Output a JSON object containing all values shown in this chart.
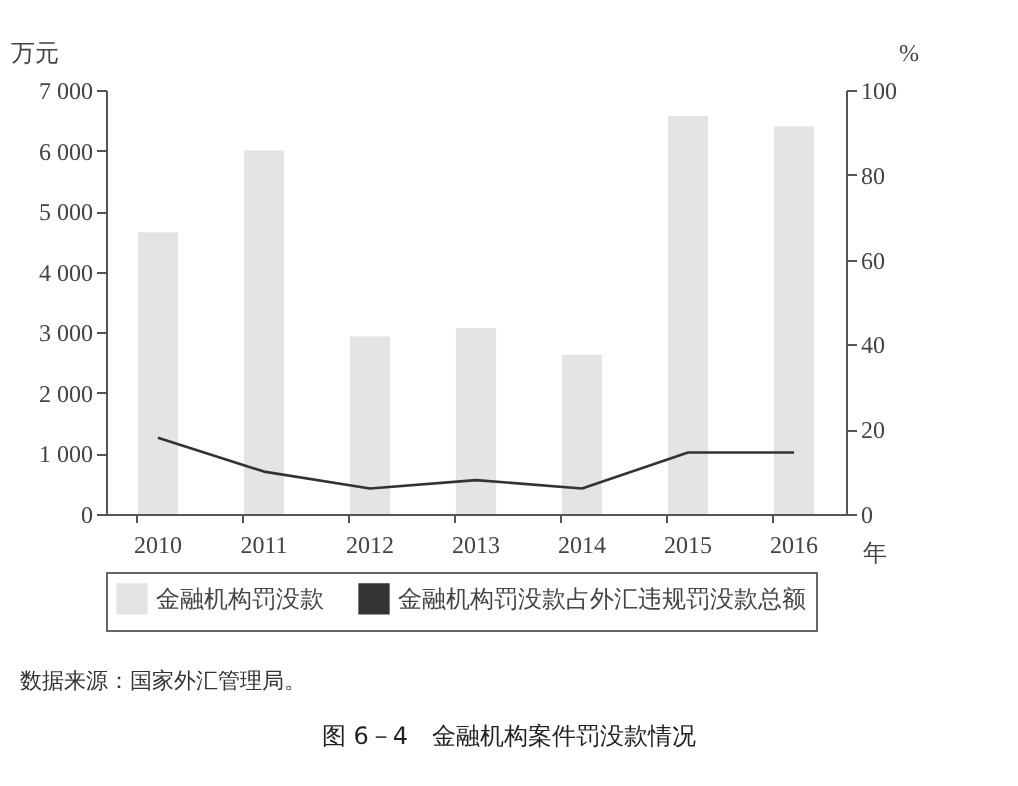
{
  "chart_data": {
    "type": "bar",
    "title": "图 6－4　金融机构案件罚没款情况",
    "categories": [
      "2010",
      "2011",
      "2012",
      "2013",
      "2014",
      "2015",
      "2016"
    ],
    "xlabel": "年",
    "ylabel": "万元",
    "y2label": "%",
    "series": [
      {
        "name": "金融机构罚没款",
        "color": "#e4e4e4",
        "values": [
          4650,
          6000,
          2930,
          3070,
          2630,
          6570,
          6400
        ]
      },
      {
        "name": "金融机构罚没款占外汇违规罚没款总额",
        "type": "line",
        "axis": "y2",
        "color": "#333333",
        "values": [
          18,
          10,
          6,
          8,
          6,
          14.5,
          14.5
        ]
      }
    ],
    "ylim": [
      0,
      7000
    ],
    "yticks": [
      0,
      {
        "value": 1000,
        "label": "1 000"
      },
      {
        "value": 2000,
        "label": "2 000"
      },
      {
        "value": 3000,
        "label": "3 000"
      },
      {
        "value": 4000,
        "label": "4 000"
      },
      {
        "value": 5000,
        "label": "5 000"
      },
      {
        "value": 6000,
        "label": "6 000"
      },
      {
        "value": 7000,
        "label": "7 000"
      }
    ],
    "y2lim": [
      0,
      100
    ],
    "y2ticks": [
      0,
      20,
      40,
      60,
      80,
      100
    ],
    "grid": false,
    "legend": "bottom",
    "marker": "none",
    "line_style": "solid",
    "annotations": [
      "数据来源：国家外汇管理局。"
    ]
  }
}
